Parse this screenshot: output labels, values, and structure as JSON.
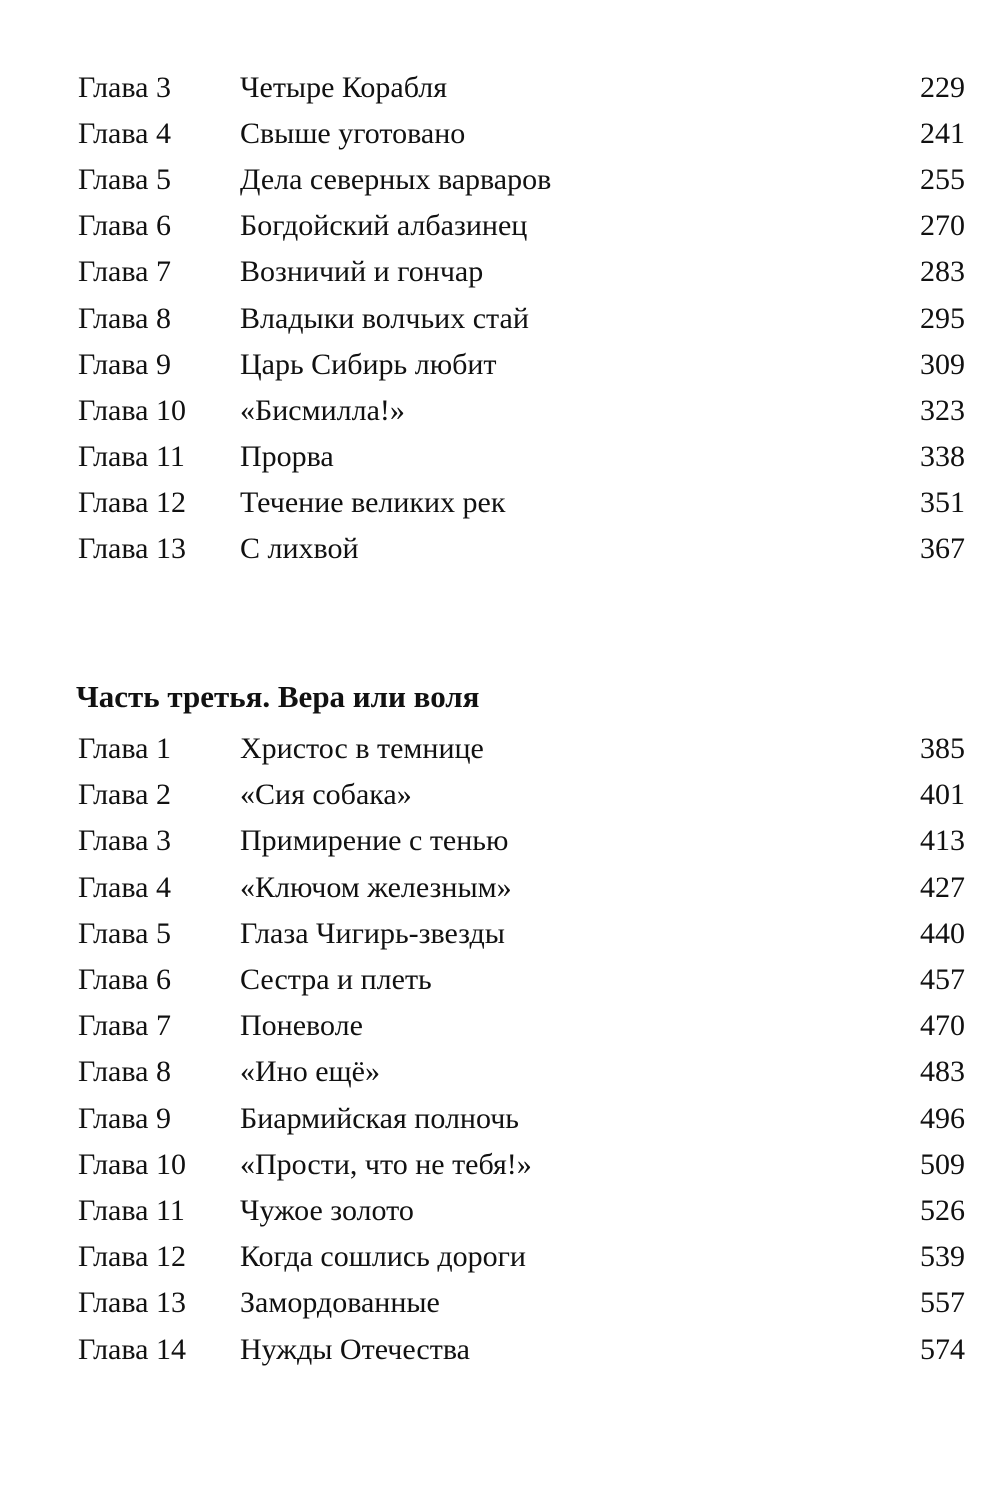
{
  "section1": {
    "entries": [
      {
        "chapter": "Глава 3",
        "title": "Четыре Корабля",
        "page": "229"
      },
      {
        "chapter": "Глава 4",
        "title": "Свыше уготовано",
        "page": "241"
      },
      {
        "chapter": "Глава 5",
        "title": "Дела северных варваров",
        "page": "255"
      },
      {
        "chapter": "Глава 6",
        "title": "Богдойский албазинец",
        "page": "270"
      },
      {
        "chapter": "Глава 7",
        "title": "Возничий и гончар",
        "page": "283"
      },
      {
        "chapter": "Глава 8",
        "title": "Владыки волчьих стай",
        "page": "295"
      },
      {
        "chapter": "Глава 9",
        "title": "Царь Сибирь любит",
        "page": "309"
      },
      {
        "chapter": "Глава 10",
        "title": "«Бисмилла!»",
        "page": "323"
      },
      {
        "chapter": "Глава 11",
        "title": "Прорва",
        "page": "338"
      },
      {
        "chapter": "Глава 12",
        "title": "Течение великих рек",
        "page": "351"
      },
      {
        "chapter": "Глава 13",
        "title": "С лихвой",
        "page": "367"
      }
    ]
  },
  "section2": {
    "heading": "Часть третья. Вера или воля",
    "entries": [
      {
        "chapter": "Глава 1",
        "title": "Христос в темнице",
        "page": "385"
      },
      {
        "chapter": "Глава 2",
        "title": "«Сия собака»",
        "page": "401"
      },
      {
        "chapter": "Глава 3",
        "title": "Примирение с тенью",
        "page": "413"
      },
      {
        "chapter": "Глава 4",
        "title": "«Ключом железным»",
        "page": "427"
      },
      {
        "chapter": "Глава 5",
        "title": "Глаза Чигирь-звезды",
        "page": "440"
      },
      {
        "chapter": "Глава 6",
        "title": "Сестра и плеть",
        "page": "457"
      },
      {
        "chapter": "Глава 7",
        "title": "Поневоле",
        "page": "470"
      },
      {
        "chapter": "Глава 8",
        "title": "«Ино ещё»",
        "page": "483"
      },
      {
        "chapter": "Глава 9",
        "title": "Биармийская полночь",
        "page": "496"
      },
      {
        "chapter": "Глава 10",
        "title": "«Прости, что не тебя!»",
        "page": "509"
      },
      {
        "chapter": "Глава 11",
        "title": "Чужое золото",
        "page": "526"
      },
      {
        "chapter": "Глава 12",
        "title": "Когда сошлись дороги",
        "page": "539"
      },
      {
        "chapter": "Глава 13",
        "title": "Замордованные",
        "page": "557"
      },
      {
        "chapter": "Глава 14",
        "title": "Нужды Отечества",
        "page": "574"
      }
    ]
  }
}
